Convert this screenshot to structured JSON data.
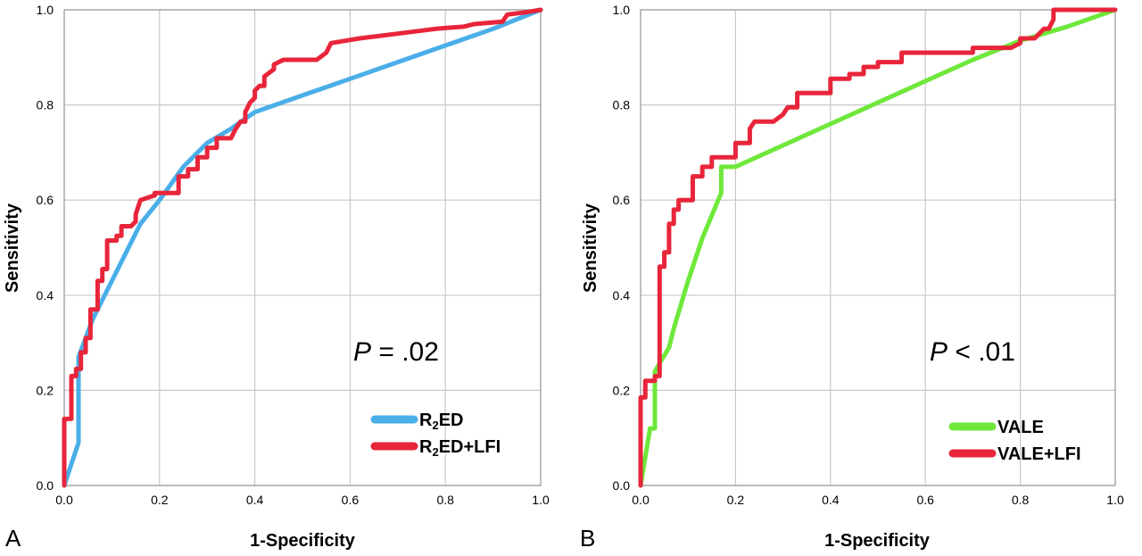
{
  "panel_letters": [
    "A",
    "B"
  ],
  "chart_data": [
    {
      "type": "line",
      "panel": "A",
      "xlabel": "1-Specificity",
      "ylabel": "Sensitivity",
      "xlim": [
        0,
        1
      ],
      "ylim": [
        0,
        1
      ],
      "xticks": [
        "0.0",
        "0.2",
        "0.4",
        "0.6",
        "0.8",
        "1.0"
      ],
      "yticks": [
        "0.0",
        "0.2",
        "0.4",
        "0.6",
        "0.8",
        "1.0"
      ],
      "grid": true,
      "legend_position": "bottom-right",
      "annotation": {
        "italic": "P",
        "rest": " = .02"
      },
      "series": [
        {
          "name_main": "R",
          "name_sub": "2",
          "name_rest": "ED",
          "color": "#4aaee8",
          "x": [
            0,
            0.03,
            0.03,
            0.06,
            0.1,
            0.16,
            0.2,
            0.25,
            0.3,
            0.35,
            0.4,
            0.5,
            0.6,
            0.7,
            0.8,
            0.9,
            1.0
          ],
          "y": [
            0,
            0.09,
            0.27,
            0.35,
            0.43,
            0.55,
            0.6,
            0.67,
            0.72,
            0.75,
            0.785,
            0.82,
            0.855,
            0.89,
            0.925,
            0.96,
            1.0
          ]
        },
        {
          "name_main": "R",
          "name_sub": "2",
          "name_rest": "ED+LFI",
          "color": "#e8253a",
          "x": [
            0,
            0,
            0.015,
            0.015,
            0.025,
            0.025,
            0.035,
            0.035,
            0.045,
            0.045,
            0.055,
            0.055,
            0.07,
            0.07,
            0.08,
            0.08,
            0.09,
            0.09,
            0.11,
            0.11,
            0.12,
            0.12,
            0.14,
            0.15,
            0.15,
            0.16,
            0.19,
            0.19,
            0.24,
            0.24,
            0.26,
            0.26,
            0.28,
            0.28,
            0.3,
            0.3,
            0.32,
            0.32,
            0.35,
            0.36,
            0.37,
            0.38,
            0.38,
            0.39,
            0.4,
            0.4,
            0.41,
            0.42,
            0.42,
            0.44,
            0.44,
            0.46,
            0.49,
            0.53,
            0.55,
            0.56,
            0.62,
            0.7,
            0.78,
            0.84,
            0.86,
            0.92,
            0.93,
            0.97,
            1.0
          ],
          "y": [
            0,
            0.14,
            0.14,
            0.23,
            0.23,
            0.245,
            0.245,
            0.28,
            0.28,
            0.31,
            0.31,
            0.37,
            0.37,
            0.43,
            0.43,
            0.455,
            0.455,
            0.515,
            0.515,
            0.525,
            0.525,
            0.545,
            0.545,
            0.555,
            0.57,
            0.6,
            0.61,
            0.615,
            0.615,
            0.65,
            0.65,
            0.665,
            0.665,
            0.69,
            0.69,
            0.71,
            0.71,
            0.73,
            0.73,
            0.75,
            0.765,
            0.765,
            0.785,
            0.805,
            0.815,
            0.83,
            0.84,
            0.84,
            0.86,
            0.875,
            0.885,
            0.895,
            0.895,
            0.895,
            0.91,
            0.93,
            0.94,
            0.95,
            0.96,
            0.965,
            0.97,
            0.975,
            0.99,
            0.995,
            1.0
          ]
        }
      ]
    },
    {
      "type": "line",
      "panel": "B",
      "xlabel": "1-Specificity",
      "ylabel": "Sensitivity",
      "xlim": [
        0,
        1
      ],
      "ylim": [
        0,
        1
      ],
      "xticks": [
        "0.0",
        "0.2",
        "0.4",
        "0.6",
        "0.8",
        "1.0"
      ],
      "yticks": [
        "0.0",
        "0.2",
        "0.4",
        "0.6",
        "0.8",
        "1.0"
      ],
      "grid": true,
      "legend_position": "bottom-right",
      "annotation": {
        "italic": "P",
        "rest": " < .01"
      },
      "series": [
        {
          "name_main": "VALE",
          "name_sub": "",
          "name_rest": "",
          "color": "#6ee83a",
          "x": [
            0,
            0.02,
            0.03,
            0.03,
            0.06,
            0.07,
            0.1,
            0.13,
            0.17,
            0.17,
            0.2,
            0.3,
            0.4,
            0.5,
            0.6,
            0.7,
            0.8,
            0.9,
            1.0
          ],
          "y": [
            0,
            0.12,
            0.12,
            0.24,
            0.29,
            0.33,
            0.43,
            0.52,
            0.615,
            0.67,
            0.67,
            0.715,
            0.76,
            0.805,
            0.85,
            0.895,
            0.935,
            0.965,
            1.0
          ]
        },
        {
          "name_main": "VALE+LFI",
          "name_sub": "",
          "name_rest": "",
          "color": "#e8253a",
          "x": [
            0,
            0,
            0.01,
            0.01,
            0.03,
            0.03,
            0.04,
            0.04,
            0.05,
            0.05,
            0.06,
            0.06,
            0.07,
            0.07,
            0.08,
            0.08,
            0.11,
            0.11,
            0.13,
            0.13,
            0.15,
            0.15,
            0.17,
            0.2,
            0.2,
            0.23,
            0.23,
            0.24,
            0.28,
            0.3,
            0.31,
            0.33,
            0.33,
            0.4,
            0.4,
            0.44,
            0.44,
            0.47,
            0.47,
            0.5,
            0.5,
            0.55,
            0.55,
            0.6,
            0.7,
            0.7,
            0.78,
            0.8,
            0.8,
            0.83,
            0.85,
            0.86,
            0.87,
            0.87,
            1.0
          ],
          "y": [
            0,
            0.185,
            0.185,
            0.22,
            0.22,
            0.23,
            0.23,
            0.46,
            0.46,
            0.49,
            0.49,
            0.55,
            0.55,
            0.58,
            0.58,
            0.6,
            0.6,
            0.65,
            0.65,
            0.67,
            0.67,
            0.69,
            0.69,
            0.69,
            0.72,
            0.72,
            0.75,
            0.765,
            0.765,
            0.78,
            0.795,
            0.795,
            0.825,
            0.825,
            0.855,
            0.855,
            0.865,
            0.865,
            0.88,
            0.88,
            0.89,
            0.89,
            0.91,
            0.91,
            0.91,
            0.92,
            0.92,
            0.93,
            0.94,
            0.94,
            0.96,
            0.96,
            0.98,
            1.0,
            1.0
          ]
        }
      ]
    }
  ]
}
